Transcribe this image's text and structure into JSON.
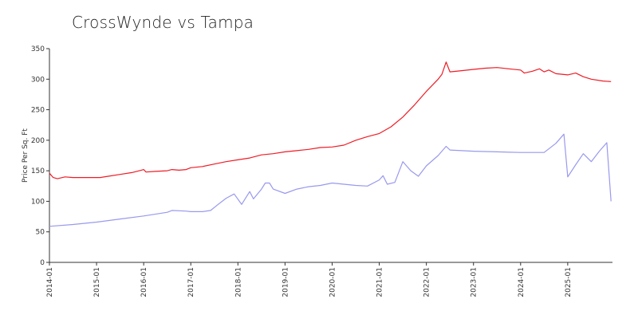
{
  "chart_data": {
    "type": "line",
    "title": "CrossWynde vs Tampa",
    "xlabel": "",
    "ylabel": "Price Per Sq. Ft",
    "ylim": [
      0,
      350
    ],
    "yticks": [
      0,
      50,
      100,
      150,
      200,
      250,
      300,
      350
    ],
    "xlim": [
      2014.0,
      2025.95
    ],
    "xticks": [
      {
        "label": "2014-01",
        "x": 2014.0
      },
      {
        "label": "2015-01",
        "x": 2015.0
      },
      {
        "label": "2016-01",
        "x": 2016.0
      },
      {
        "label": "2017-01",
        "x": 2017.0
      },
      {
        "label": "2018-01",
        "x": 2018.0
      },
      {
        "label": "2019-01",
        "x": 2019.0
      },
      {
        "label": "2020-01",
        "x": 2020.0
      },
      {
        "label": "2021-01",
        "x": 2021.0
      },
      {
        "label": "2022-01",
        "x": 2022.0
      },
      {
        "label": "2023-01",
        "x": 2023.0
      },
      {
        "label": "2024-01",
        "x": 2024.0
      },
      {
        "label": "2025-01",
        "x": 2025.0
      }
    ],
    "series": [
      {
        "name": "Tampa",
        "color": "#ee1c25",
        "points": [
          [
            2014.0,
            146
          ],
          [
            2014.08,
            139
          ],
          [
            2014.17,
            137
          ],
          [
            2014.33,
            140
          ],
          [
            2014.5,
            139
          ],
          [
            2014.75,
            139
          ],
          [
            2014.9,
            139
          ],
          [
            2015.0,
            139
          ],
          [
            2015.08,
            139
          ],
          [
            2015.25,
            141
          ],
          [
            2015.5,
            144
          ],
          [
            2015.75,
            147
          ],
          [
            2015.95,
            151
          ],
          [
            2016.0,
            152
          ],
          [
            2016.05,
            148
          ],
          [
            2016.25,
            149
          ],
          [
            2016.5,
            150
          ],
          [
            2016.6,
            152
          ],
          [
            2016.75,
            151
          ],
          [
            2016.9,
            152
          ],
          [
            2017.0,
            155
          ],
          [
            2017.25,
            157
          ],
          [
            2017.5,
            161
          ],
          [
            2017.75,
            165
          ],
          [
            2018.0,
            168
          ],
          [
            2018.25,
            171
          ],
          [
            2018.5,
            176
          ],
          [
            2018.75,
            178
          ],
          [
            2019.0,
            181
          ],
          [
            2019.25,
            183
          ],
          [
            2019.5,
            185
          ],
          [
            2019.75,
            188
          ],
          [
            2020.0,
            189
          ],
          [
            2020.25,
            192
          ],
          [
            2020.5,
            200
          ],
          [
            2020.75,
            206
          ],
          [
            2021.0,
            211
          ],
          [
            2021.25,
            222
          ],
          [
            2021.5,
            238
          ],
          [
            2021.75,
            258
          ],
          [
            2022.0,
            280
          ],
          [
            2022.25,
            300
          ],
          [
            2022.33,
            308
          ],
          [
            2022.42,
            328
          ],
          [
            2022.5,
            312
          ],
          [
            2022.75,
            314
          ],
          [
            2023.0,
            316
          ],
          [
            2023.25,
            318
          ],
          [
            2023.5,
            319
          ],
          [
            2023.75,
            317
          ],
          [
            2024.0,
            315
          ],
          [
            2024.08,
            310
          ],
          [
            2024.25,
            313
          ],
          [
            2024.4,
            317
          ],
          [
            2024.5,
            312
          ],
          [
            2024.6,
            315
          ],
          [
            2024.75,
            309
          ],
          [
            2025.0,
            307
          ],
          [
            2025.17,
            310
          ],
          [
            2025.33,
            304
          ],
          [
            2025.5,
            300
          ],
          [
            2025.75,
            297
          ],
          [
            2025.92,
            296
          ]
        ]
      },
      {
        "name": "CrossWynde",
        "color": "#9999ee",
        "points": [
          [
            2014.0,
            59
          ],
          [
            2014.5,
            62
          ],
          [
            2015.0,
            66
          ],
          [
            2015.5,
            71
          ],
          [
            2016.0,
            76
          ],
          [
            2016.5,
            82
          ],
          [
            2016.6,
            85
          ],
          [
            2016.9,
            84
          ],
          [
            2017.0,
            83
          ],
          [
            2017.25,
            83
          ],
          [
            2017.42,
            85
          ],
          [
            2017.58,
            95
          ],
          [
            2017.75,
            105
          ],
          [
            2017.92,
            112
          ],
          [
            2018.08,
            95
          ],
          [
            2018.25,
            116
          ],
          [
            2018.33,
            104
          ],
          [
            2018.5,
            120
          ],
          [
            2018.58,
            130
          ],
          [
            2018.67,
            130
          ],
          [
            2018.75,
            120
          ],
          [
            2019.0,
            113
          ],
          [
            2019.25,
            120
          ],
          [
            2019.5,
            124
          ],
          [
            2019.75,
            126
          ],
          [
            2020.0,
            130
          ],
          [
            2020.25,
            128
          ],
          [
            2020.5,
            126
          ],
          [
            2020.75,
            125
          ],
          [
            2021.0,
            135
          ],
          [
            2021.08,
            142
          ],
          [
            2021.17,
            128
          ],
          [
            2021.33,
            131
          ],
          [
            2021.5,
            165
          ],
          [
            2021.67,
            150
          ],
          [
            2021.83,
            141
          ],
          [
            2022.0,
            158
          ],
          [
            2022.25,
            175
          ],
          [
            2022.42,
            190
          ],
          [
            2022.5,
            184
          ],
          [
            2022.75,
            183
          ],
          [
            2023.0,
            182
          ],
          [
            2023.5,
            181
          ],
          [
            2024.0,
            180
          ],
          [
            2024.5,
            180
          ],
          [
            2024.75,
            195
          ],
          [
            2024.92,
            210
          ],
          [
            2025.0,
            140
          ],
          [
            2025.17,
            160
          ],
          [
            2025.33,
            178
          ],
          [
            2025.5,
            165
          ],
          [
            2025.67,
            182
          ],
          [
            2025.83,
            196
          ],
          [
            2025.92,
            100
          ]
        ]
      }
    ]
  }
}
